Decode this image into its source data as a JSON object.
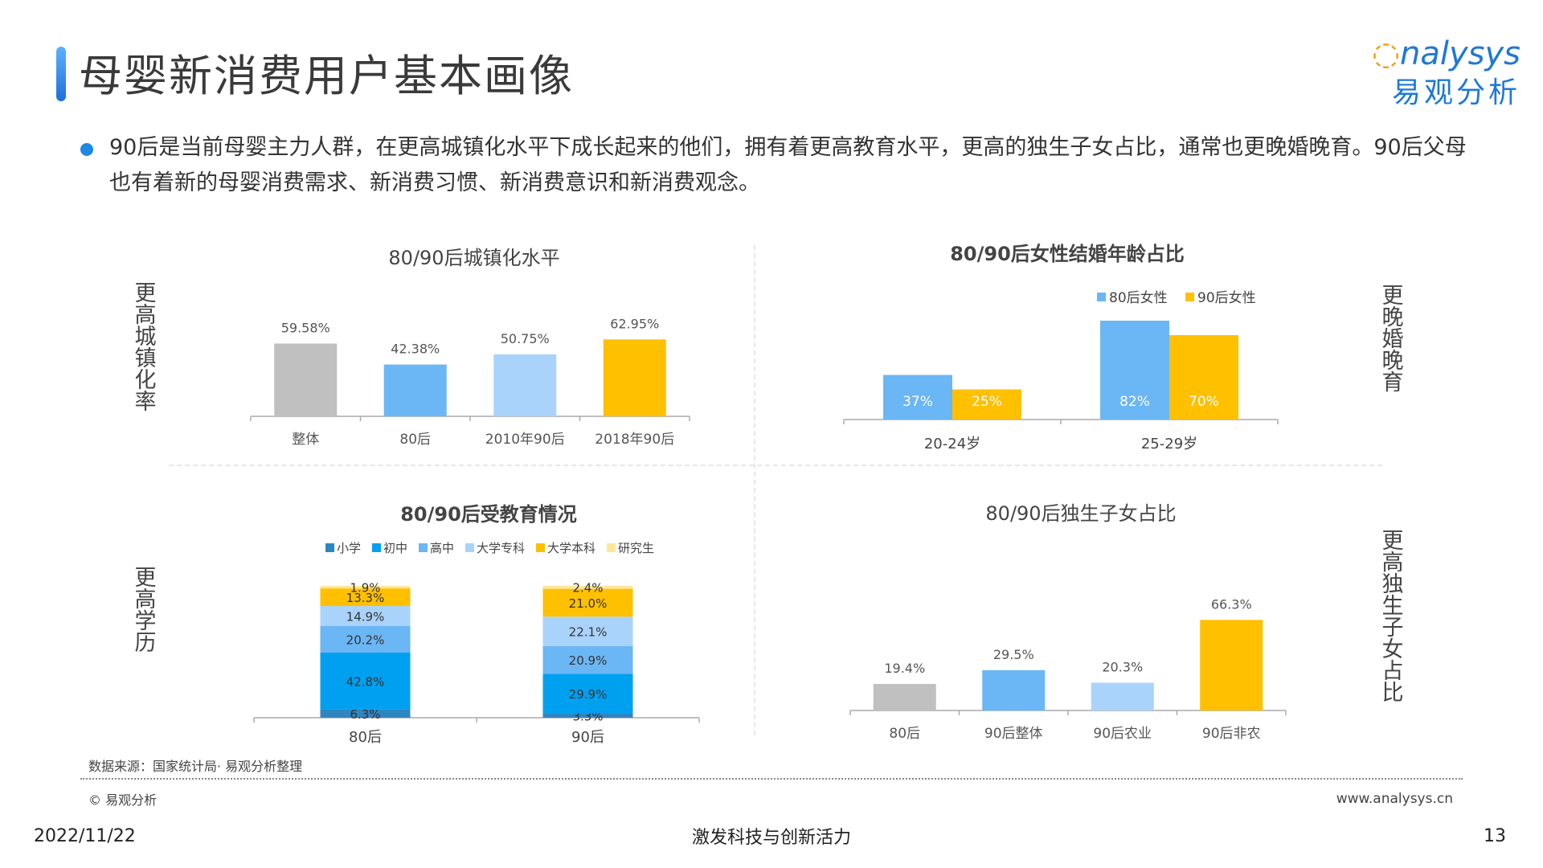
{
  "page": {
    "title": "母婴新消费用户基本画像",
    "logo_en": "nalysys",
    "logo_cn": "易观分析",
    "intro": "90后是当前母婴主力人群，在更高城镇化水平下成长起来的他们，拥有着更高教育水平，更高的独生子女占比，通常也更晚婚晚育。90后父母也有着新的母婴消费需求、新消费习惯、新消费意识和新消费观念。",
    "side_labels": {
      "urban": "更高城镇化率",
      "marriage": "更晚婚晚育",
      "education": "更高学历",
      "only_child": "更高独生子女占比"
    },
    "source": "数据来源：国家统计局· 易观分析整理",
    "copyright": "© 易观分析",
    "website": "www.analysys.cn",
    "date": "2022/11/22",
    "slogan": "激发科技与创新活力",
    "page_number": "13",
    "colors": {
      "accent": "#1e78d7",
      "gray": "#c0c0c0",
      "blue": "#6bb6f5",
      "light_blue": "#a9d3fb",
      "yellow": "#ffc000"
    }
  },
  "chart_data": [
    {
      "id": "urban",
      "type": "bar",
      "title": "80/90后城镇化水平",
      "categories": [
        "整体",
        "80后",
        "2010年90后",
        "2018年90后"
      ],
      "values": [
        59.58,
        42.38,
        50.75,
        62.95
      ],
      "labels": [
        "59.58%",
        "42.38%",
        "50.75%",
        "62.95%"
      ],
      "colors": [
        "#c0c0c0",
        "#6bb6f5",
        "#a9d3fb",
        "#ffc000"
      ]
    },
    {
      "id": "marriage",
      "type": "bar",
      "title": "80/90后女性结婚年龄占比",
      "categories": [
        "20-24岁",
        "25-29岁"
      ],
      "series": [
        {
          "name": "80后女性",
          "values": [
            37,
            82
          ],
          "labels": [
            "37%",
            "82%"
          ],
          "color": "#6bb6f5"
        },
        {
          "name": "90后女性",
          "values": [
            25,
            70
          ],
          "labels": [
            "25%",
            "70%"
          ],
          "color": "#ffc000"
        }
      ],
      "legend": "top-right"
    },
    {
      "id": "education",
      "type": "bar",
      "stacked": true,
      "title": "80/90后受教育情况",
      "categories": [
        "80后",
        "90后"
      ],
      "series": [
        {
          "name": "小学",
          "values": [
            6.3,
            3.3
          ],
          "labels": [
            "6.3%",
            "3.3%"
          ],
          "color": "#2e86c1"
        },
        {
          "name": "初中",
          "values": [
            42.8,
            29.9
          ],
          "labels": [
            "42.8%",
            "29.9%"
          ],
          "color": "#00a0f0"
        },
        {
          "name": "高中",
          "values": [
            20.2,
            20.9
          ],
          "labels": [
            "20.2%",
            "20.9%"
          ],
          "color": "#6bb6f5"
        },
        {
          "name": "大学专科",
          "values": [
            14.9,
            22.1
          ],
          "labels": [
            "14.9%",
            "22.1%"
          ],
          "color": "#a9d3fb"
        },
        {
          "name": "大学本科",
          "values": [
            13.3,
            21.0
          ],
          "labels": [
            "13.3%",
            "21.0%"
          ],
          "color": "#ffc000"
        },
        {
          "name": "研究生",
          "values": [
            1.9,
            2.4
          ],
          "labels": [
            "1.9%",
            "2.4%"
          ],
          "color": "#ffe699"
        }
      ],
      "legend": "top"
    },
    {
      "id": "only_child",
      "type": "bar",
      "title": "80/90后独生子女占比",
      "categories": [
        "80后",
        "90后整体",
        "90后农业",
        "90后非农"
      ],
      "values": [
        19.4,
        29.5,
        20.3,
        66.3
      ],
      "labels": [
        "19.4%",
        "29.5%",
        "20.3%",
        "66.3%"
      ],
      "colors": [
        "#c0c0c0",
        "#6bb6f5",
        "#a9d3fb",
        "#ffc000"
      ]
    }
  ]
}
